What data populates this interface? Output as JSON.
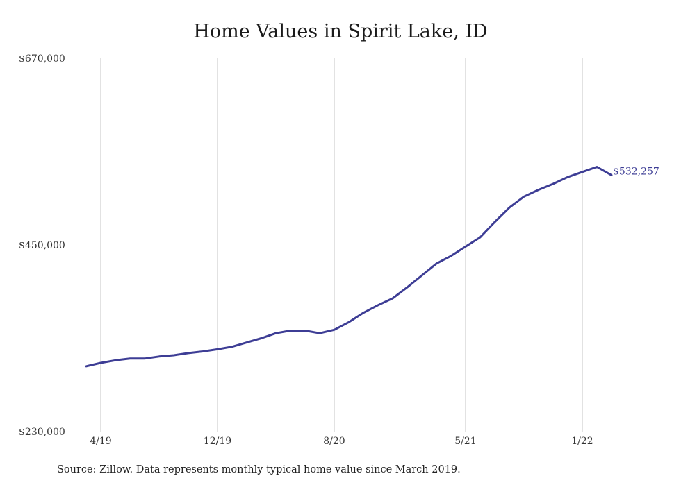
{
  "chart_data": {
    "type": "line",
    "title": "Home Values in Spirit Lake, ID",
    "xlabel": "",
    "ylabel": "",
    "ylim": [
      230000,
      670000
    ],
    "y_ticks": [
      "$670,000",
      "$450,000",
      "$230,000"
    ],
    "y_tick_values": [
      670000,
      450000,
      230000
    ],
    "x_ticks": [
      "4/19",
      "12/19",
      "8/20",
      "5/21",
      "1/22"
    ],
    "x_tick_months": [
      "2019-04",
      "2019-12",
      "2020-08",
      "2021-05",
      "2022-01"
    ],
    "grid": "vertical",
    "line_color": "#3d3d95",
    "series": [
      {
        "name": "",
        "x": [
          "2019-03",
          "2019-04",
          "2019-05",
          "2019-06",
          "2019-07",
          "2019-08",
          "2019-09",
          "2019-10",
          "2019-11",
          "2019-12",
          "2020-01",
          "2020-02",
          "2020-03",
          "2020-04",
          "2020-05",
          "2020-06",
          "2020-07",
          "2020-08",
          "2020-09",
          "2020-10",
          "2020-11",
          "2020-12",
          "2021-01",
          "2021-02",
          "2021-03",
          "2021-04",
          "2021-05",
          "2021-06",
          "2021-07",
          "2021-08",
          "2021-09",
          "2021-10",
          "2021-11",
          "2021-12",
          "2022-01",
          "2022-02",
          "2022-03"
        ],
        "values": [
          307000,
          311000,
          314000,
          316000,
          316000,
          318500,
          320000,
          322500,
          324500,
          327000,
          330000,
          335000,
          340000,
          346000,
          349000,
          349000,
          346000,
          350000,
          359000,
          370000,
          379000,
          387000,
          400000,
          414000,
          428000,
          437000,
          448000,
          459000,
          477000,
          494000,
          507000,
          515000,
          522000,
          530000,
          536000,
          542000,
          532257
        ]
      }
    ],
    "end_label": "$532,257"
  },
  "source_note": "Source: Zillow. Data represents monthly typical home value since March 2019."
}
